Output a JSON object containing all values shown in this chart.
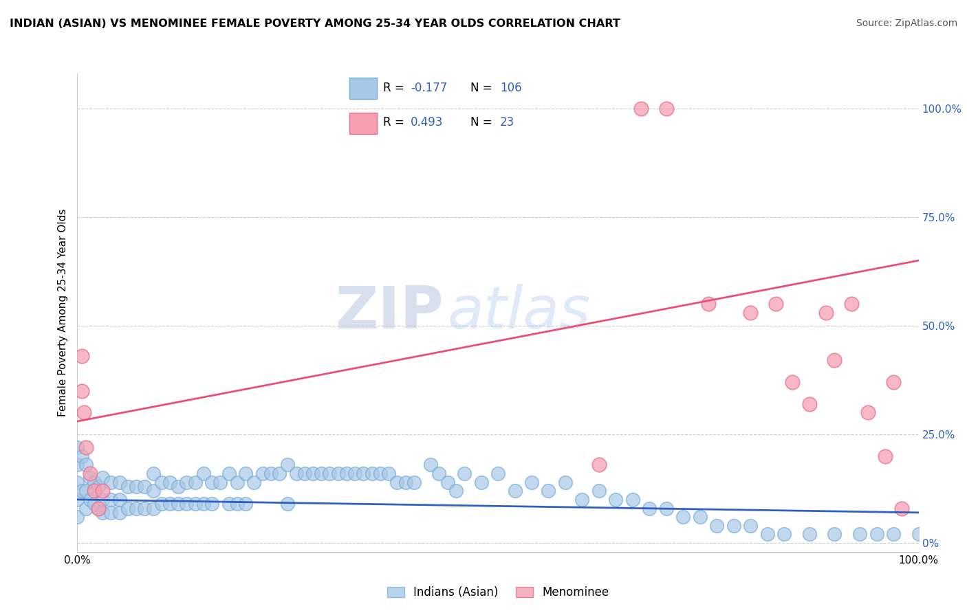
{
  "title": "INDIAN (ASIAN) VS MENOMINEE FEMALE POVERTY AMONG 25-34 YEAR OLDS CORRELATION CHART",
  "source": "Source: ZipAtlas.com",
  "ylabel": "Female Poverty Among 25-34 Year Olds",
  "xlim": [
    0.0,
    1.0
  ],
  "ylim": [
    -0.02,
    1.08
  ],
  "yticks": [
    0.0,
    0.25,
    0.5,
    0.75,
    1.0
  ],
  "ytick_labels_right": [
    "0%",
    "25.0%",
    "50.0%",
    "75.0%",
    "100.0%"
  ],
  "xticks": [
    0.0,
    0.25,
    0.5,
    0.75,
    1.0
  ],
  "xtick_labels": [
    "0.0%",
    "",
    "",
    "",
    "100.0%"
  ],
  "blue_color": "#a8c8e8",
  "pink_color": "#f4a0b0",
  "blue_edge_color": "#7aaed4",
  "pink_edge_color": "#e87090",
  "blue_line_color": "#3060c0",
  "pink_line_color": "#e8507a",
  "legend_label_color": "#3060c0",
  "watermark_color": "#d0ddf0",
  "blue_scatter_x": [
    0.0,
    0.0,
    0.0,
    0.0,
    0.0,
    0.005,
    0.005,
    0.01,
    0.01,
    0.01,
    0.015,
    0.015,
    0.02,
    0.02,
    0.025,
    0.025,
    0.03,
    0.03,
    0.03,
    0.04,
    0.04,
    0.04,
    0.05,
    0.05,
    0.05,
    0.06,
    0.06,
    0.07,
    0.07,
    0.08,
    0.08,
    0.09,
    0.09,
    0.09,
    0.1,
    0.1,
    0.11,
    0.11,
    0.12,
    0.12,
    0.13,
    0.13,
    0.14,
    0.14,
    0.15,
    0.15,
    0.16,
    0.16,
    0.17,
    0.18,
    0.18,
    0.19,
    0.19,
    0.2,
    0.2,
    0.21,
    0.22,
    0.23,
    0.24,
    0.25,
    0.25,
    0.26,
    0.27,
    0.28,
    0.29,
    0.3,
    0.31,
    0.32,
    0.33,
    0.34,
    0.35,
    0.36,
    0.37,
    0.38,
    0.39,
    0.4,
    0.42,
    0.43,
    0.44,
    0.45,
    0.46,
    0.48,
    0.5,
    0.52,
    0.54,
    0.56,
    0.58,
    0.6,
    0.62,
    0.64,
    0.66,
    0.68,
    0.7,
    0.72,
    0.74,
    0.76,
    0.78,
    0.8,
    0.82,
    0.84,
    0.87,
    0.9,
    0.93,
    0.95,
    0.97,
    1.0
  ],
  "blue_scatter_y": [
    0.22,
    0.18,
    0.14,
    0.1,
    0.06,
    0.2,
    0.12,
    0.18,
    0.12,
    0.08,
    0.15,
    0.1,
    0.14,
    0.09,
    0.13,
    0.08,
    0.15,
    0.1,
    0.07,
    0.14,
    0.1,
    0.07,
    0.14,
    0.1,
    0.07,
    0.13,
    0.08,
    0.13,
    0.08,
    0.13,
    0.08,
    0.16,
    0.12,
    0.08,
    0.14,
    0.09,
    0.14,
    0.09,
    0.13,
    0.09,
    0.14,
    0.09,
    0.14,
    0.09,
    0.16,
    0.09,
    0.14,
    0.09,
    0.14,
    0.16,
    0.09,
    0.14,
    0.09,
    0.16,
    0.09,
    0.14,
    0.16,
    0.16,
    0.16,
    0.18,
    0.09,
    0.16,
    0.16,
    0.16,
    0.16,
    0.16,
    0.16,
    0.16,
    0.16,
    0.16,
    0.16,
    0.16,
    0.16,
    0.14,
    0.14,
    0.14,
    0.18,
    0.16,
    0.14,
    0.12,
    0.16,
    0.14,
    0.16,
    0.12,
    0.14,
    0.12,
    0.14,
    0.1,
    0.12,
    0.1,
    0.1,
    0.08,
    0.08,
    0.06,
    0.06,
    0.04,
    0.04,
    0.04,
    0.02,
    0.02,
    0.02,
    0.02,
    0.02,
    0.02,
    0.02,
    0.02
  ],
  "pink_scatter_x": [
    0.005,
    0.005,
    0.008,
    0.01,
    0.015,
    0.02,
    0.025,
    0.03,
    0.62,
    0.67,
    0.7,
    0.75,
    0.8,
    0.83,
    0.85,
    0.87,
    0.89,
    0.9,
    0.92,
    0.94,
    0.96,
    0.97,
    0.98
  ],
  "pink_scatter_y": [
    0.43,
    0.35,
    0.3,
    0.22,
    0.16,
    0.12,
    0.08,
    0.12,
    0.18,
    1.0,
    1.0,
    0.55,
    0.53,
    0.55,
    0.37,
    0.32,
    0.53,
    0.42,
    0.55,
    0.3,
    0.2,
    0.37,
    0.08
  ],
  "blue_trend_x": [
    0.0,
    1.0
  ],
  "blue_trend_y": [
    0.1,
    0.07
  ],
  "pink_trend_x": [
    0.0,
    1.0
  ],
  "pink_trend_y": [
    0.28,
    0.65
  ]
}
